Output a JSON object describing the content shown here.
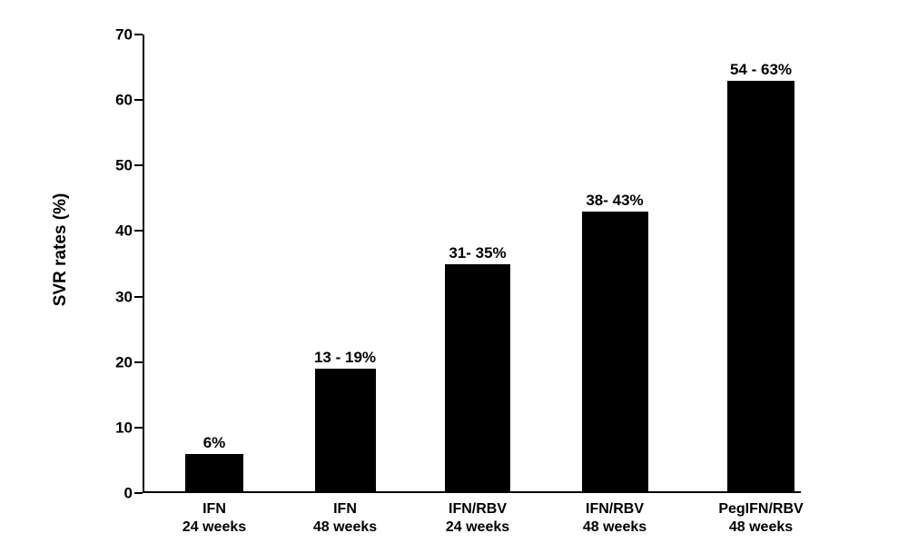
{
  "chart_data": {
    "type": "bar",
    "title": "",
    "ylabel": "SVR rates (%)",
    "xlabel": "",
    "ylim": [
      0,
      70
    ],
    "yticks": [
      0,
      10,
      20,
      30,
      40,
      50,
      60,
      70
    ],
    "grid": false,
    "legend": false,
    "bar_color": "#000000",
    "axis_color": "#000000",
    "background_color": "#ffffff",
    "categories": [
      [
        "IFN",
        "24 weeks"
      ],
      [
        "IFN",
        "48 weeks"
      ],
      [
        "IFN/RBV",
        "24 weeks"
      ],
      [
        "IFN/RBV",
        "48 weeks"
      ],
      [
        "PegIFN/RBV",
        "48 weeks"
      ]
    ],
    "values": [
      6,
      19,
      35,
      43,
      63
    ],
    "value_labels": [
      "6%",
      "13 - 19%",
      "31- 35%",
      "38- 43%",
      "54 - 63%"
    ],
    "value_ranges": [
      {
        "low": 6,
        "high": 6
      },
      {
        "low": 13,
        "high": 19
      },
      {
        "low": 31,
        "high": 35
      },
      {
        "low": 38,
        "high": 43
      },
      {
        "low": 54,
        "high": 63
      }
    ]
  }
}
